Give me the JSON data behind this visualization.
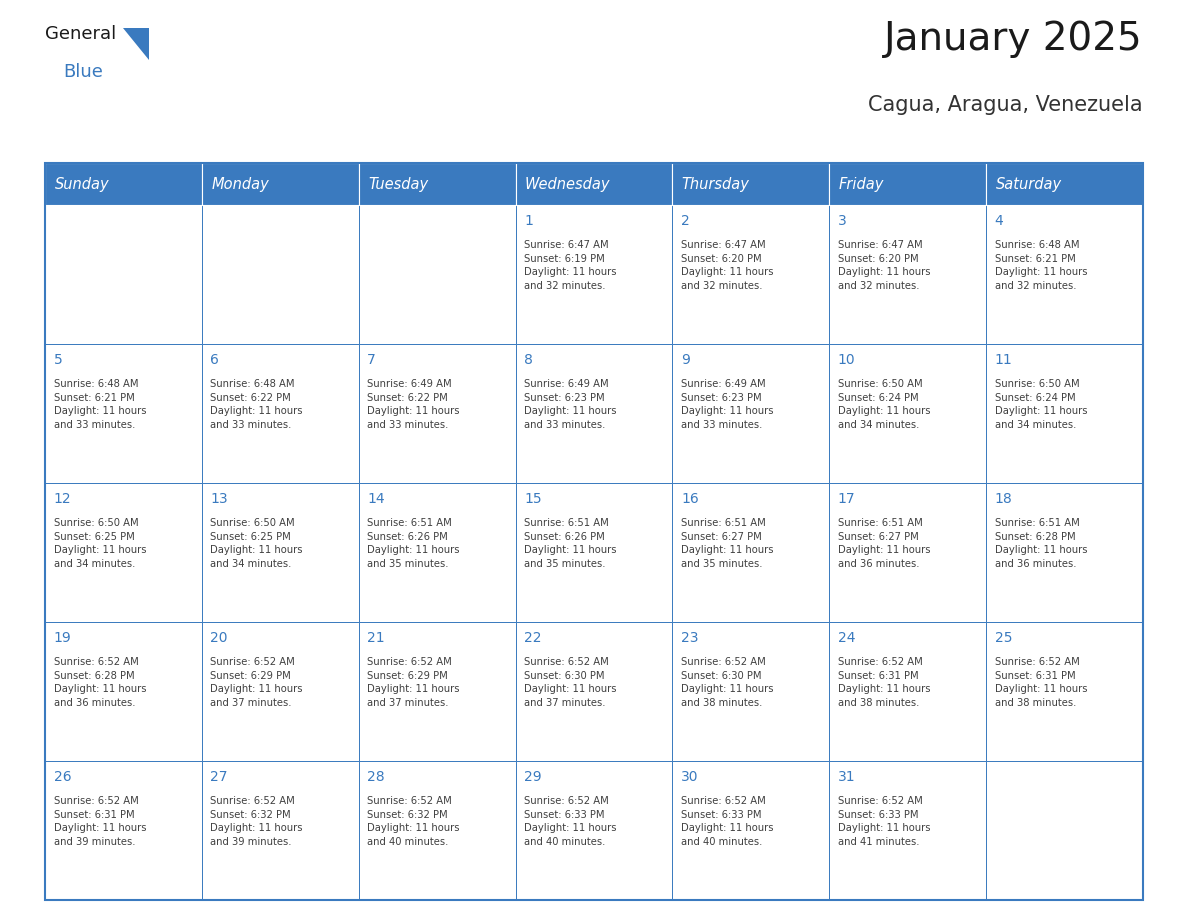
{
  "title": "January 2025",
  "subtitle": "Cagua, Aragua, Venezuela",
  "days_of_week": [
    "Sunday",
    "Monday",
    "Tuesday",
    "Wednesday",
    "Thursday",
    "Friday",
    "Saturday"
  ],
  "header_bg": "#3a7abf",
  "header_text": "#ffffff",
  "cell_bg": "#ffffff",
  "grid_line_color": "#3a7abf",
  "day_num_color": "#3a7abf",
  "cell_text_color": "#404040",
  "title_color": "#1a1a1a",
  "subtitle_color": "#333333",
  "logo_general_color": "#1a1a1a",
  "logo_blue_color": "#3a7abf",
  "weeks": [
    {
      "days": [
        {
          "date": null,
          "info": null
        },
        {
          "date": null,
          "info": null
        },
        {
          "date": null,
          "info": null
        },
        {
          "date": 1,
          "info": "Sunrise: 6:47 AM\nSunset: 6:19 PM\nDaylight: 11 hours\nand 32 minutes."
        },
        {
          "date": 2,
          "info": "Sunrise: 6:47 AM\nSunset: 6:20 PM\nDaylight: 11 hours\nand 32 minutes."
        },
        {
          "date": 3,
          "info": "Sunrise: 6:47 AM\nSunset: 6:20 PM\nDaylight: 11 hours\nand 32 minutes."
        },
        {
          "date": 4,
          "info": "Sunrise: 6:48 AM\nSunset: 6:21 PM\nDaylight: 11 hours\nand 32 minutes."
        }
      ]
    },
    {
      "days": [
        {
          "date": 5,
          "info": "Sunrise: 6:48 AM\nSunset: 6:21 PM\nDaylight: 11 hours\nand 33 minutes."
        },
        {
          "date": 6,
          "info": "Sunrise: 6:48 AM\nSunset: 6:22 PM\nDaylight: 11 hours\nand 33 minutes."
        },
        {
          "date": 7,
          "info": "Sunrise: 6:49 AM\nSunset: 6:22 PM\nDaylight: 11 hours\nand 33 minutes."
        },
        {
          "date": 8,
          "info": "Sunrise: 6:49 AM\nSunset: 6:23 PM\nDaylight: 11 hours\nand 33 minutes."
        },
        {
          "date": 9,
          "info": "Sunrise: 6:49 AM\nSunset: 6:23 PM\nDaylight: 11 hours\nand 33 minutes."
        },
        {
          "date": 10,
          "info": "Sunrise: 6:50 AM\nSunset: 6:24 PM\nDaylight: 11 hours\nand 34 minutes."
        },
        {
          "date": 11,
          "info": "Sunrise: 6:50 AM\nSunset: 6:24 PM\nDaylight: 11 hours\nand 34 minutes."
        }
      ]
    },
    {
      "days": [
        {
          "date": 12,
          "info": "Sunrise: 6:50 AM\nSunset: 6:25 PM\nDaylight: 11 hours\nand 34 minutes."
        },
        {
          "date": 13,
          "info": "Sunrise: 6:50 AM\nSunset: 6:25 PM\nDaylight: 11 hours\nand 34 minutes."
        },
        {
          "date": 14,
          "info": "Sunrise: 6:51 AM\nSunset: 6:26 PM\nDaylight: 11 hours\nand 35 minutes."
        },
        {
          "date": 15,
          "info": "Sunrise: 6:51 AM\nSunset: 6:26 PM\nDaylight: 11 hours\nand 35 minutes."
        },
        {
          "date": 16,
          "info": "Sunrise: 6:51 AM\nSunset: 6:27 PM\nDaylight: 11 hours\nand 35 minutes."
        },
        {
          "date": 17,
          "info": "Sunrise: 6:51 AM\nSunset: 6:27 PM\nDaylight: 11 hours\nand 36 minutes."
        },
        {
          "date": 18,
          "info": "Sunrise: 6:51 AM\nSunset: 6:28 PM\nDaylight: 11 hours\nand 36 minutes."
        }
      ]
    },
    {
      "days": [
        {
          "date": 19,
          "info": "Sunrise: 6:52 AM\nSunset: 6:28 PM\nDaylight: 11 hours\nand 36 minutes."
        },
        {
          "date": 20,
          "info": "Sunrise: 6:52 AM\nSunset: 6:29 PM\nDaylight: 11 hours\nand 37 minutes."
        },
        {
          "date": 21,
          "info": "Sunrise: 6:52 AM\nSunset: 6:29 PM\nDaylight: 11 hours\nand 37 minutes."
        },
        {
          "date": 22,
          "info": "Sunrise: 6:52 AM\nSunset: 6:30 PM\nDaylight: 11 hours\nand 37 minutes."
        },
        {
          "date": 23,
          "info": "Sunrise: 6:52 AM\nSunset: 6:30 PM\nDaylight: 11 hours\nand 38 minutes."
        },
        {
          "date": 24,
          "info": "Sunrise: 6:52 AM\nSunset: 6:31 PM\nDaylight: 11 hours\nand 38 minutes."
        },
        {
          "date": 25,
          "info": "Sunrise: 6:52 AM\nSunset: 6:31 PM\nDaylight: 11 hours\nand 38 minutes."
        }
      ]
    },
    {
      "days": [
        {
          "date": 26,
          "info": "Sunrise: 6:52 AM\nSunset: 6:31 PM\nDaylight: 11 hours\nand 39 minutes."
        },
        {
          "date": 27,
          "info": "Sunrise: 6:52 AM\nSunset: 6:32 PM\nDaylight: 11 hours\nand 39 minutes."
        },
        {
          "date": 28,
          "info": "Sunrise: 6:52 AM\nSunset: 6:32 PM\nDaylight: 11 hours\nand 40 minutes."
        },
        {
          "date": 29,
          "info": "Sunrise: 6:52 AM\nSunset: 6:33 PM\nDaylight: 11 hours\nand 40 minutes."
        },
        {
          "date": 30,
          "info": "Sunrise: 6:52 AM\nSunset: 6:33 PM\nDaylight: 11 hours\nand 40 minutes."
        },
        {
          "date": 31,
          "info": "Sunrise: 6:52 AM\nSunset: 6:33 PM\nDaylight: 11 hours\nand 41 minutes."
        },
        {
          "date": null,
          "info": null
        }
      ]
    }
  ]
}
